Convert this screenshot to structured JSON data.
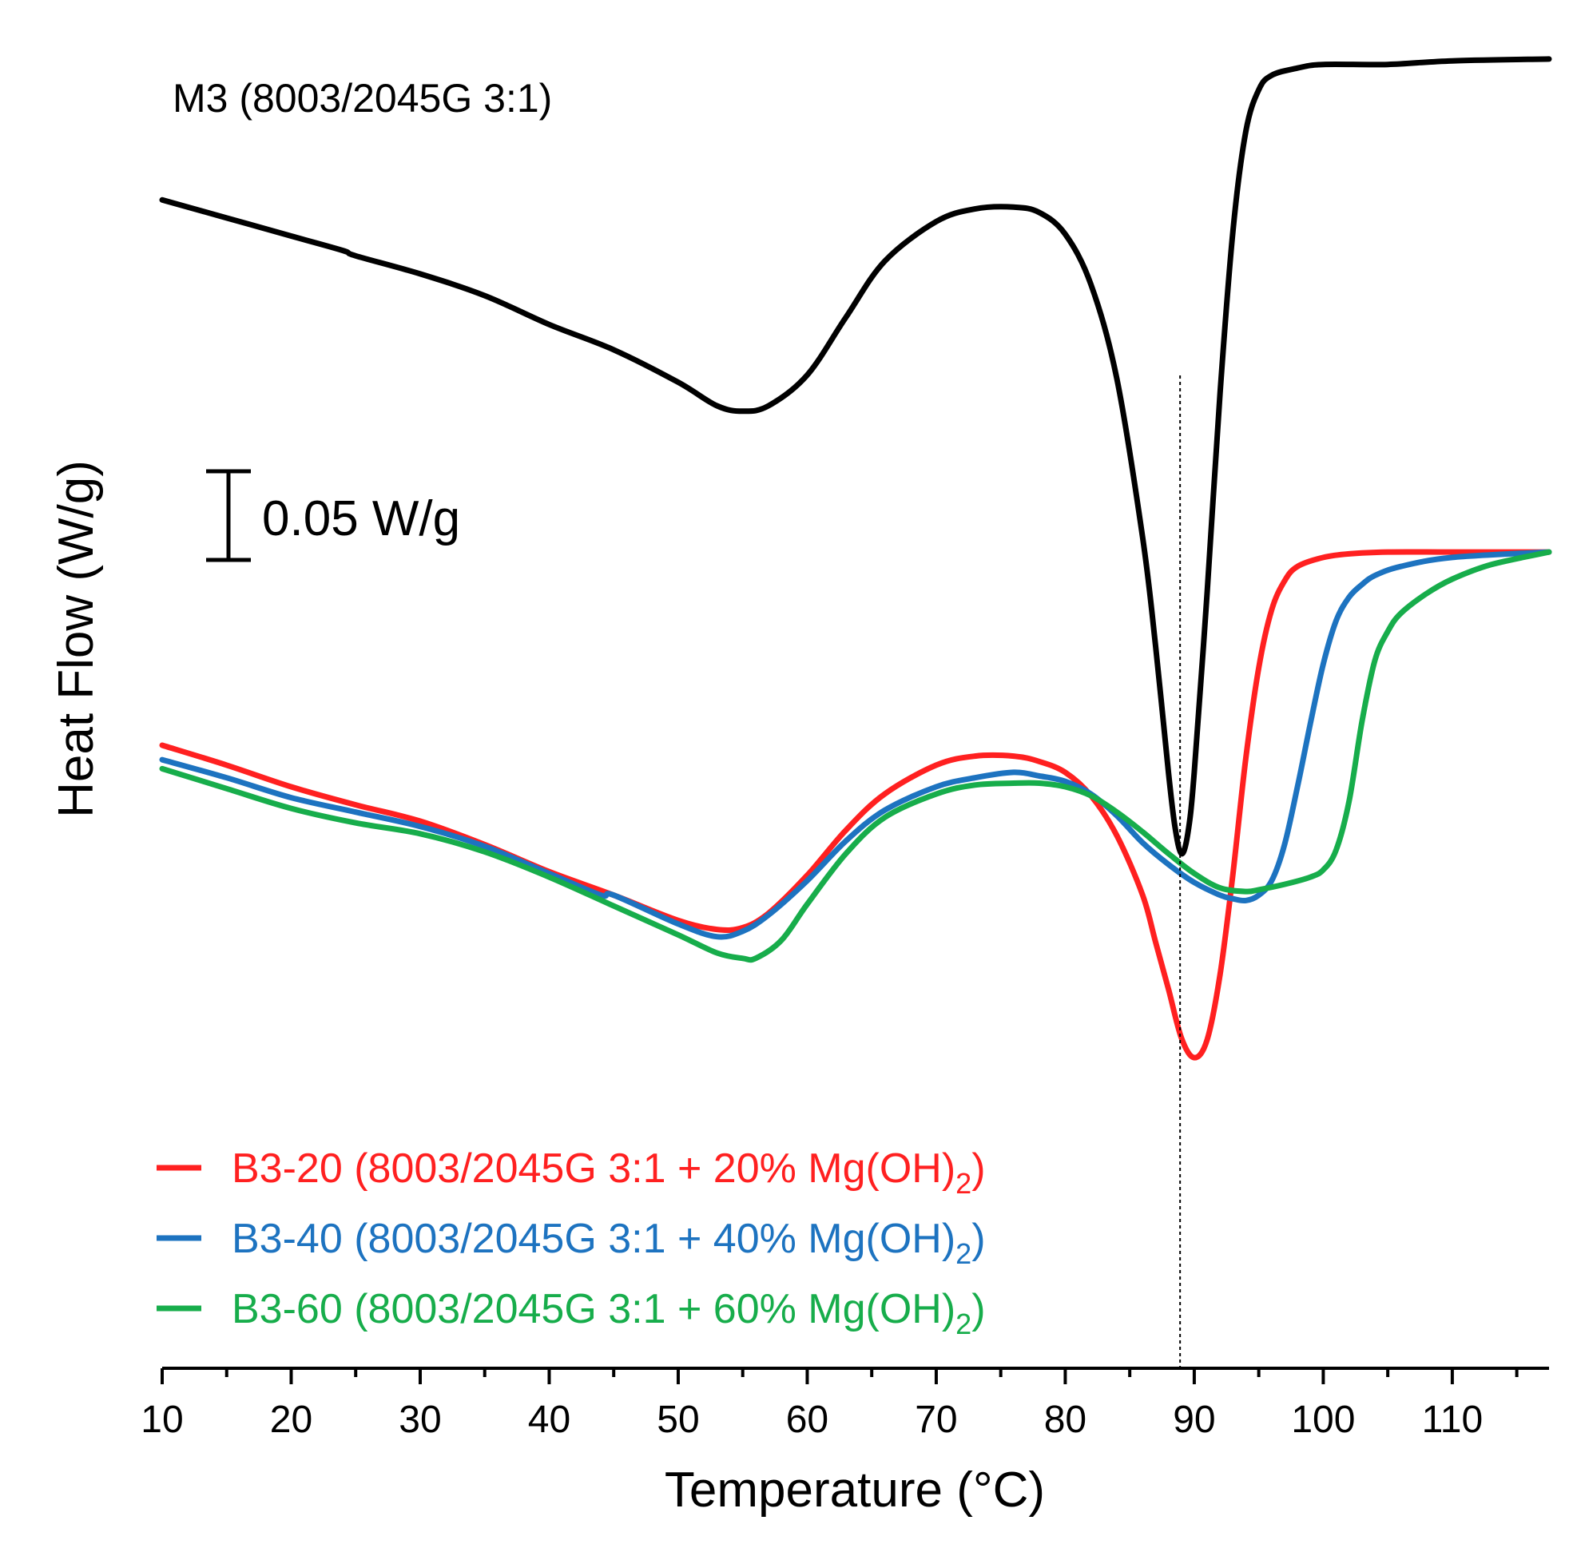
{
  "chart_data": {
    "type": "line",
    "xlabel": "Temperature (°C)",
    "ylabel": "Heat Flow (W/g)",
    "xlim": [
      10,
      117.5
    ],
    "xticks": [
      10,
      20,
      30,
      40,
      50,
      60,
      70,
      80,
      90,
      100,
      110
    ],
    "xtick_labels": [
      "10",
      "20",
      "30",
      "40",
      "50",
      "60",
      "70",
      "80",
      "90",
      "100",
      "110"
    ],
    "ylim": [
      0,
      0.74
    ],
    "yaxis_visible": false,
    "grid": false,
    "legend_position": "bottom-left",
    "scale_bar": {
      "value": 0.05,
      "label": "0.05 W/g"
    },
    "reference_line_x": 88.9,
    "series": [
      {
        "name": "M3 (8003/2045G 3:1)",
        "color": "#000000",
        "x": [
          10,
          15,
          20,
          24,
          25,
          30,
          35,
          40,
          45,
          50,
          53,
          55,
          57,
          60,
          63,
          66,
          70,
          73,
          76,
          78,
          80,
          82,
          84,
          86,
          87,
          88,
          88.5,
          89,
          89.5,
          90,
          91,
          92,
          93,
          94,
          95,
          96,
          98,
          100,
          105,
          110,
          117.5
        ],
        "y": [
          0.647,
          0.637,
          0.627,
          0.619,
          0.616,
          0.606,
          0.594,
          0.578,
          0.564,
          0.546,
          0.533,
          0.53,
          0.533,
          0.55,
          0.582,
          0.613,
          0.635,
          0.642,
          0.643,
          0.64,
          0.628,
          0.6,
          0.548,
          0.46,
          0.4,
          0.33,
          0.3,
          0.285,
          0.296,
          0.33,
          0.43,
          0.54,
          0.63,
          0.685,
          0.708,
          0.716,
          0.72,
          0.722,
          0.722,
          0.724,
          0.725
        ]
      },
      {
        "name": "B3-20 (8003/2045G 3:1 + 20% Mg(OH)",
        "color": "#ff2020",
        "x": [
          10,
          15,
          20,
          25,
          30,
          35,
          40,
          45,
          50,
          53,
          55,
          57,
          60,
          63,
          66,
          70,
          73,
          76,
          78,
          80,
          82,
          84,
          86,
          87,
          88,
          89,
          90,
          91,
          92,
          93,
          94,
          95,
          96,
          97,
          98,
          100,
          102,
          105,
          110,
          117.5
        ],
        "y": [
          0.345,
          0.334,
          0.322,
          0.312,
          0.303,
          0.29,
          0.275,
          0.262,
          0.248,
          0.243,
          0.244,
          0.252,
          0.273,
          0.298,
          0.318,
          0.334,
          0.339,
          0.339,
          0.336,
          0.33,
          0.317,
          0.295,
          0.262,
          0.236,
          0.21,
          0.183,
          0.172,
          0.182,
          0.218,
          0.274,
          0.338,
          0.388,
          0.42,
          0.436,
          0.444,
          0.449,
          0.451,
          0.452,
          0.452,
          0.452
        ]
      },
      {
        "name": "B3-40 (8003/2045G 3:1 + 40% Mg(OH)",
        "color": "#1d73c0",
        "x": [
          10,
          15,
          20,
          25,
          30,
          35,
          40,
          44,
          45,
          50,
          53,
          55,
          57,
          60,
          63,
          66,
          70,
          73,
          76,
          78,
          80,
          82,
          84,
          86,
          88,
          90,
          92,
          93,
          94,
          95,
          96,
          97,
          98,
          99,
          100,
          101,
          102,
          103,
          104,
          106,
          110,
          117.5
        ],
        "y": [
          0.337,
          0.327,
          0.316,
          0.308,
          0.3,
          0.289,
          0.274,
          0.262,
          0.262,
          0.246,
          0.239,
          0.242,
          0.251,
          0.27,
          0.292,
          0.309,
          0.322,
          0.327,
          0.33,
          0.328,
          0.325,
          0.318,
          0.306,
          0.291,
          0.279,
          0.269,
          0.262,
          0.26,
          0.259,
          0.262,
          0.27,
          0.29,
          0.322,
          0.357,
          0.39,
          0.414,
          0.427,
          0.434,
          0.439,
          0.444,
          0.449,
          0.452
        ]
      },
      {
        "name": "B3-60 (8003/2045G 3:1 + 60% Mg(OH)",
        "color": "#17ad4b",
        "x": [
          10,
          15,
          20,
          25,
          30,
          35,
          40,
          45,
          50,
          53,
          55,
          56,
          58,
          60,
          63,
          66,
          70,
          73,
          76,
          78,
          80,
          82,
          84,
          86,
          88,
          90,
          92,
          94,
          95,
          97,
          99,
          100,
          101,
          102,
          103,
          104,
          105,
          106,
          108,
          110,
          113,
          117.5
        ],
        "y": [
          0.332,
          0.321,
          0.31,
          0.302,
          0.296,
          0.286,
          0.272,
          0.256,
          0.24,
          0.23,
          0.227,
          0.227,
          0.237,
          0.257,
          0.285,
          0.305,
          0.318,
          0.323,
          0.324,
          0.324,
          0.322,
          0.317,
          0.308,
          0.297,
          0.285,
          0.274,
          0.266,
          0.264,
          0.265,
          0.268,
          0.272,
          0.276,
          0.287,
          0.314,
          0.358,
          0.392,
          0.408,
          0.418,
          0.429,
          0.437,
          0.445,
          0.452
        ]
      }
    ],
    "subscript_label": "2",
    "legend_close_paren": ")"
  }
}
